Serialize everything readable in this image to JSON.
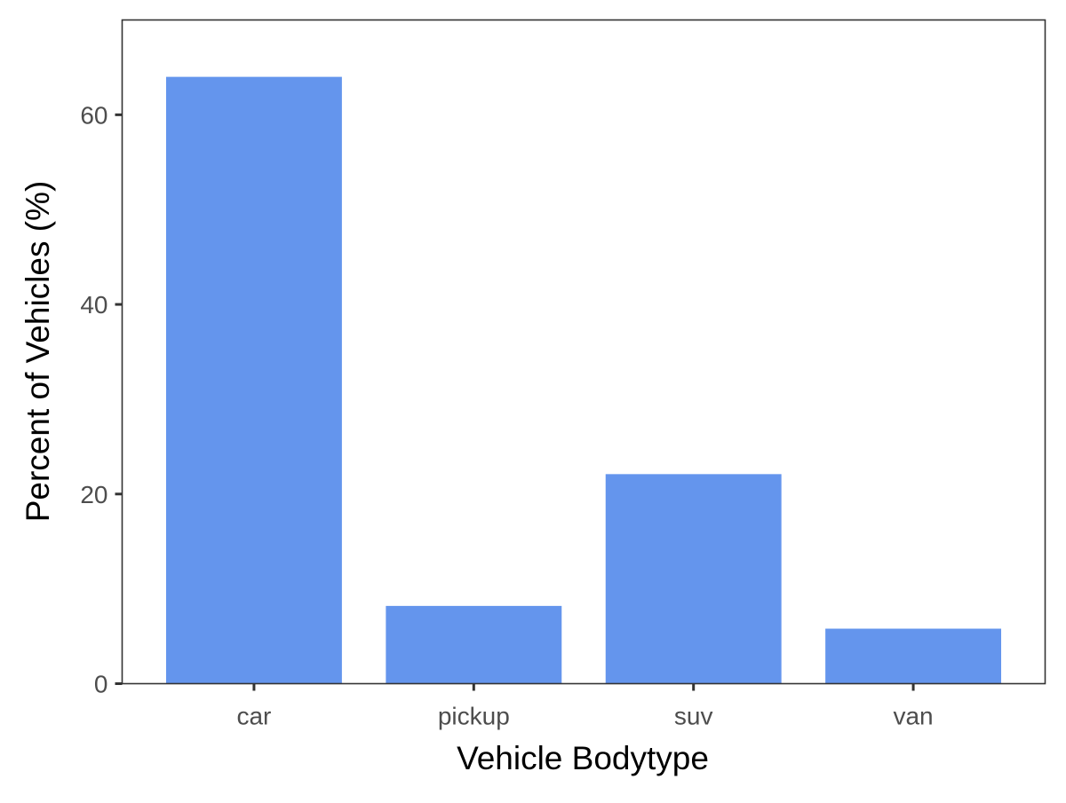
{
  "chart_data": {
    "type": "bar",
    "title": "",
    "xlabel": "Vehicle Bodytype",
    "ylabel": "Percent of Vehicles (%)",
    "categories": [
      "car",
      "pickup",
      "suv",
      "van"
    ],
    "values": [
      64.0,
      8.2,
      22.1,
      5.8
    ],
    "ylim": [
      0,
      70
    ],
    "yticks": [
      0,
      20,
      40,
      60
    ],
    "grid": false,
    "legend": "none",
    "colors": {
      "bar": "#6495ED",
      "panel_border": "#333333",
      "tick_label": "#4d4d4d",
      "axis_title": "#000000"
    }
  }
}
